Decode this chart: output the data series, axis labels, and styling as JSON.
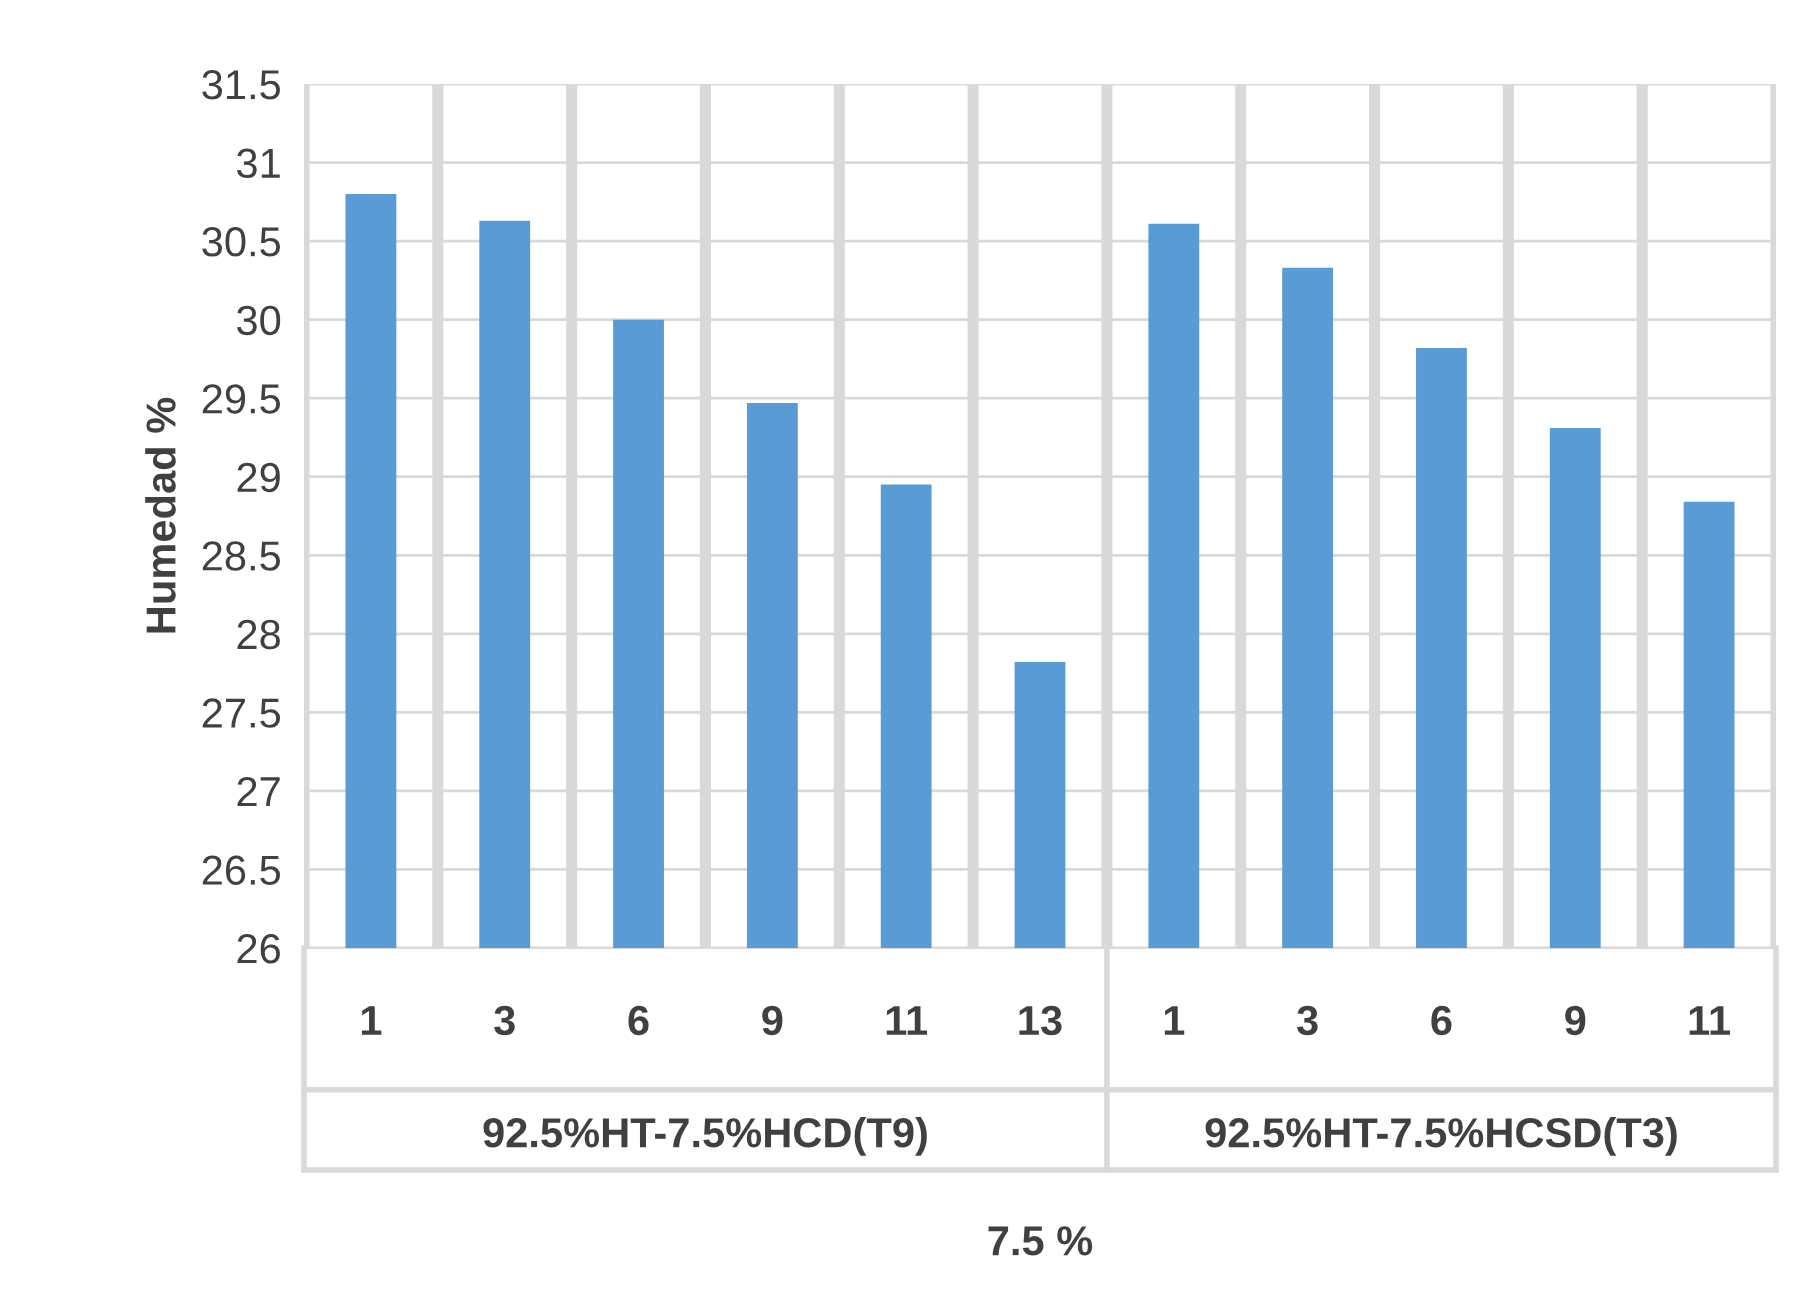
{
  "chart_data": {
    "type": "bar",
    "ylabel": "Humedad %",
    "xlabel": "7.5 %",
    "categories": [
      "1",
      "3",
      "6",
      "9",
      "11",
      "13",
      "1",
      "3",
      "6",
      "9",
      "11"
    ],
    "values": [
      30.8,
      30.63,
      30.0,
      29.47,
      28.95,
      27.82,
      30.61,
      30.33,
      29.82,
      29.31,
      28.84
    ],
    "color": "#5b9bd5",
    "ylim": [
      26,
      31.5
    ],
    "yticks": [
      26,
      26.5,
      27,
      27.5,
      28,
      28.5,
      29,
      29.5,
      30,
      30.5,
      31,
      31.5
    ],
    "grid": "y",
    "annotations": [
      "92.5%HT-7.5%HCD(T9)",
      "92.5%HT-7.5%HCSD(T3)"
    ]
  }
}
